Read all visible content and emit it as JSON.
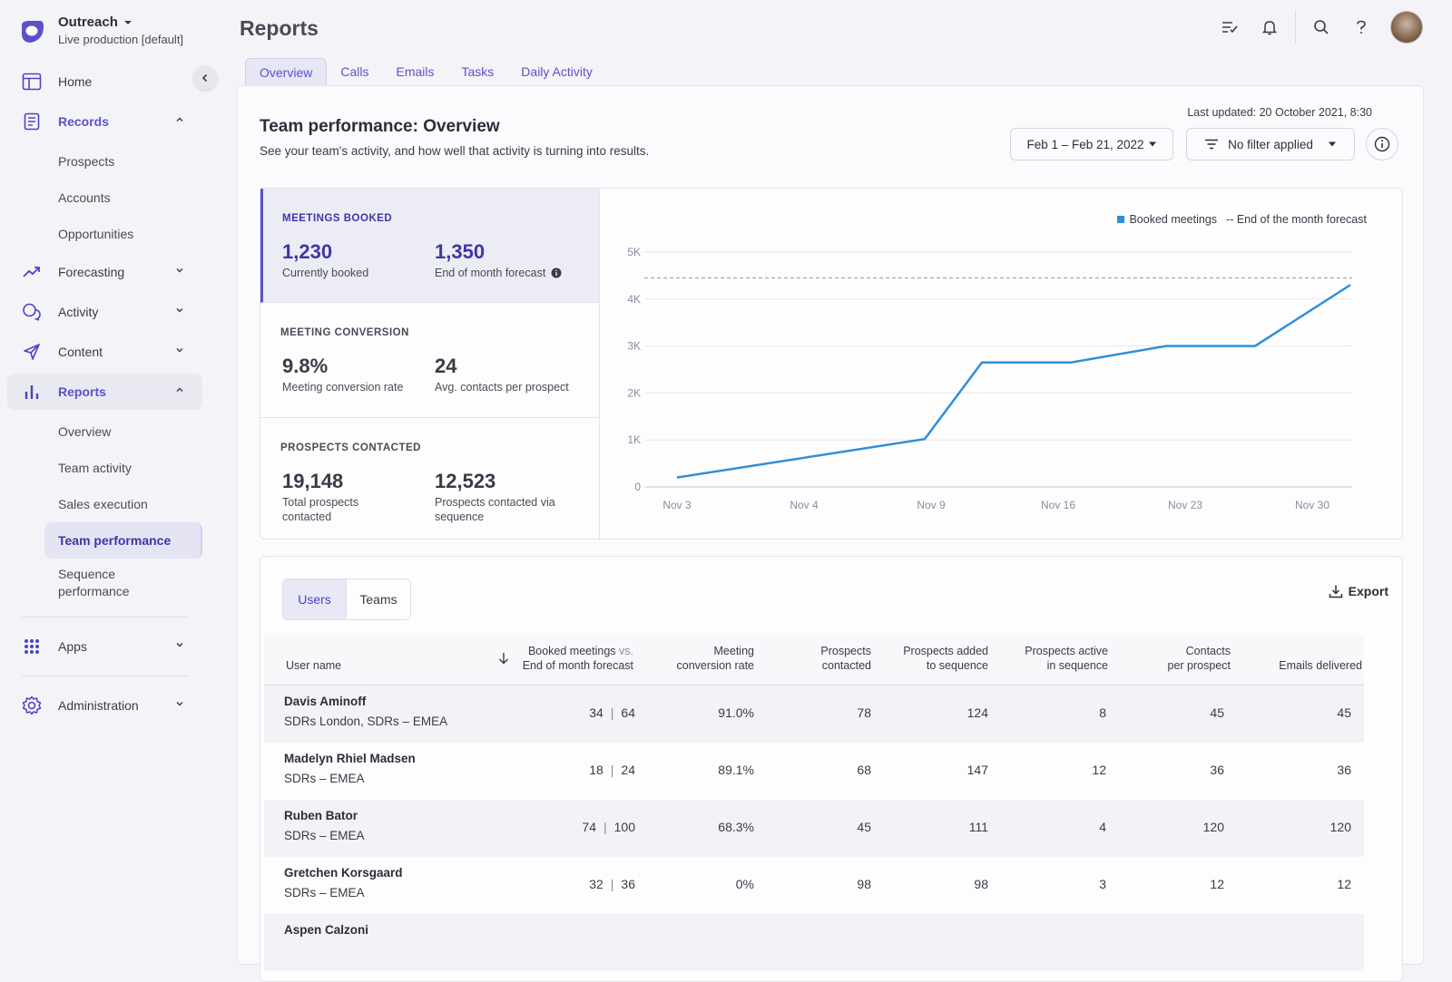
{
  "brand": {
    "name": "Outreach",
    "sub": "Live production [default]"
  },
  "nav": {
    "home": "Home",
    "records": "Records",
    "records_sub": [
      "Prospects",
      "Accounts",
      "Opportunities"
    ],
    "forecasting": "Forecasting",
    "activity": "Activity",
    "content": "Content",
    "reports": "Reports",
    "reports_sub": [
      "Overview",
      "Team activity",
      "Sales execution",
      "Team performance",
      "Sequence performance"
    ],
    "apps": "Apps",
    "administration": "Administration"
  },
  "header": {
    "title": "Reports"
  },
  "tabs": [
    "Overview",
    "Calls",
    "Emails",
    "Tasks",
    "Daily Activity"
  ],
  "card": {
    "title": "Team performance: Overview",
    "subtitle": "See your team's activity, and how well that activity is turning into results.",
    "last_updated": "Last updated: 20 October 2021, 8:30",
    "date_range": "Feb 1 – Feb 21, 2022",
    "filter": "No filter applied"
  },
  "metrics": {
    "meetings": {
      "title": "MEETINGS BOOKED",
      "v1": "1,230",
      "l1": "Currently booked",
      "v2": "1,350",
      "l2": "End of month forecast"
    },
    "conversion": {
      "title": "MEETING CONVERSION",
      "v1": "9.8%",
      "l1": "Meeting conversion rate",
      "v2": "24",
      "l2": "Avg. contacts per prospect"
    },
    "prospects": {
      "title": "PROSPECTS CONTACTED",
      "v1": "19,148",
      "l1": "Total prospects contacted",
      "v2": "12,523",
      "l2": "Prospects contacted via sequence"
    }
  },
  "chart_data": {
    "type": "line",
    "legend": [
      "Booked meetings",
      "-- End of the month forecast"
    ],
    "x_labels": [
      "Nov 3",
      "Nov 4",
      "Nov 9",
      "Nov 16",
      "Nov 23",
      "Nov 30"
    ],
    "y_labels": [
      "0",
      "1K",
      "2K",
      "3K",
      "4K",
      "5K"
    ],
    "ylim": [
      0,
      5000
    ],
    "series": [
      {
        "name": "Booked meetings",
        "color": "#2f8fd8",
        "x": [
          0,
          1.95,
          2.4,
          3.1,
          3.85,
          4.55,
          5.3
        ],
        "values": [
          200,
          1020,
          2650,
          2650,
          3000,
          3000,
          4300
        ]
      }
    ],
    "forecast": 4450,
    "grid": true,
    "legend_position": "top-right"
  },
  "table": {
    "segments": [
      "Users",
      "Teams"
    ],
    "export_label": "Export",
    "headers": {
      "user": "User name",
      "booked_1": "Booked meetings",
      "booked_vs": "vs.",
      "booked_2": "End of month forecast",
      "conv_1": "Meeting",
      "conv_2": "conversion rate",
      "pc_1": "Prospects",
      "pc_2": "contacted",
      "pa_1": "Prospects added",
      "pa_2": "to sequence",
      "pas_1": "Prospects active",
      "pas_2": "in sequence",
      "cpp_1": "Contacts",
      "cpp_2": "per prospect",
      "emails": "Emails delivered"
    },
    "rows": [
      {
        "name": "Davis Aminoff",
        "team": "SDRs London, SDRs – EMEA",
        "booked": "34",
        "forecast": "64",
        "conv": "91.0%",
        "contacted": "78",
        "added": "124",
        "active": "8",
        "cpp": "45",
        "emails": "45"
      },
      {
        "name": "Madelyn Rhiel Madsen",
        "team": "SDRs – EMEA",
        "booked": "18",
        "forecast": "24",
        "conv": "89.1%",
        "contacted": "68",
        "added": "147",
        "active": "12",
        "cpp": "36",
        "emails": "36"
      },
      {
        "name": "Ruben Bator",
        "team": "SDRs – EMEA",
        "booked": "74",
        "forecast": "100",
        "conv": "68.3%",
        "contacted": "45",
        "added": "111",
        "active": "4",
        "cpp": "120",
        "emails": "120"
      },
      {
        "name": "Gretchen Korsgaard",
        "team": "SDRs – EMEA",
        "booked": "32",
        "forecast": "36",
        "conv": "0%",
        "contacted": "98",
        "added": "98",
        "active": "3",
        "cpp": "12",
        "emails": "12"
      },
      {
        "name": "Aspen Calzoni",
        "team": "",
        "booked": "",
        "forecast": "",
        "conv": "",
        "contacted": "",
        "added": "",
        "active": "",
        "cpp": "",
        "emails": ""
      }
    ]
  }
}
